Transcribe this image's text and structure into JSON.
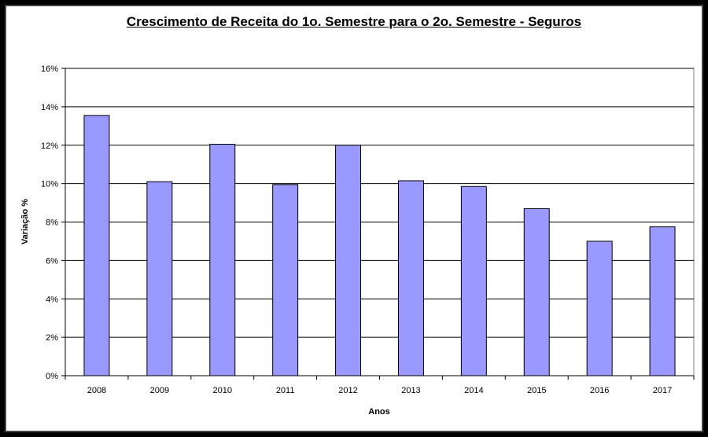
{
  "chart_data": {
    "type": "bar",
    "title": "Crescimento de Receita do 1o. Semestre para o 2o. Semestre - Seguros",
    "xlabel": "Anos",
    "ylabel": "Variação %",
    "categories": [
      "2008",
      "2009",
      "2010",
      "2011",
      "2012",
      "2013",
      "2014",
      "2015",
      "2016",
      "2017"
    ],
    "values": [
      13.55,
      10.1,
      12.05,
      9.95,
      12.0,
      10.15,
      9.85,
      8.7,
      7.0,
      7.75
    ],
    "ylim": [
      0,
      16
    ],
    "yticks": [
      0,
      2,
      4,
      6,
      8,
      10,
      12,
      14,
      16
    ],
    "ytick_labels": [
      "0%",
      "2%",
      "4%",
      "6%",
      "8%",
      "10%",
      "12%",
      "14%",
      "16%"
    ],
    "grid": true,
    "legend": "none",
    "colors": {
      "bar_fill": "#9999ff",
      "bar_stroke": "#000000",
      "gridline": "#000000",
      "plot_background": "#ffffff",
      "frame": "#000000"
    }
  }
}
